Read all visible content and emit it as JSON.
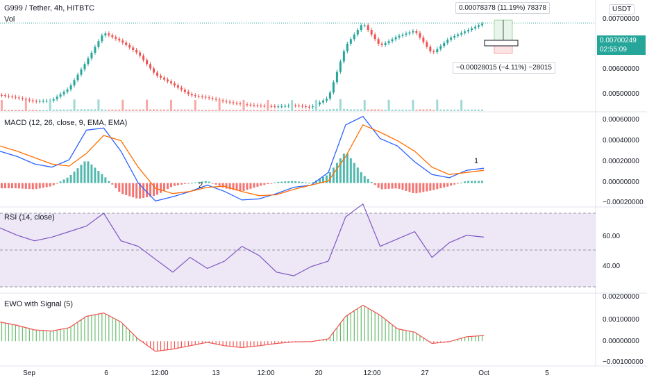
{
  "header": {
    "title": "G999 / Tether, 4h, HITBTC",
    "volume_label": "Vol",
    "currency_button": "USDT"
  },
  "last_price": {
    "value": "0.00700249",
    "countdown": "02:55:09",
    "color": "#26a69a"
  },
  "measure_up": {
    "text": "0.00078378 (11.19%) 78378"
  },
  "measure_down": {
    "text": "−0.00028015 (−4.11%) −28015"
  },
  "price_axis": [
    "0.00700000",
    "0.00600000",
    "0.00500000"
  ],
  "macd_panel": {
    "title": "MACD (12, 26, close, 9, EMA, EMA)",
    "axis": [
      "0.00060000",
      "0.00040000",
      "0.00020000",
      "0.00000000",
      "−0.00020000"
    ],
    "marks": [
      "1",
      "2"
    ]
  },
  "rsi_panel": {
    "title": "RSI (14, close)",
    "axis": [
      "60.00",
      "40.00"
    ]
  },
  "ewo_panel": {
    "title": "EWO with Signal (5)",
    "axis": [
      "0.00200000",
      "0.00100000",
      "0.00000000",
      "−0.00100000"
    ]
  },
  "time_axis": [
    "Sep",
    "6",
    "12:00",
    "13",
    "12:00",
    "20",
    "12:00",
    "27",
    "Oct",
    "5"
  ],
  "colors": {
    "up": "#26a69a",
    "down": "#ef5350",
    "macd": "#2962ff",
    "signal": "#ff6d00",
    "rsi": "#7e57c2",
    "rsi_band": "#ede7f6",
    "ewo_up": "#66bb6a",
    "ewo_down": "#ef5350"
  },
  "chart_data": {
    "type": "line",
    "x": [
      0,
      5,
      10,
      15,
      20,
      25,
      30,
      35,
      40,
      45,
      50,
      55,
      60,
      65,
      70,
      75,
      80,
      85,
      90,
      95,
      100,
      105,
      110,
      115,
      120,
      125,
      130,
      135,
      140
    ],
    "series": [
      {
        "name": "G999 / Tether",
        "values": [
          0.00512,
          0.00505,
          0.00495,
          0.00498,
          0.0053,
          0.006,
          0.00675,
          0.00652,
          0.0062,
          0.00565,
          0.0054,
          0.00512,
          0.00505,
          0.00495,
          0.00488,
          0.00484,
          0.00482,
          0.00485,
          0.0048,
          0.00505,
          0.0064,
          0.007,
          0.0064,
          0.00665,
          0.0068,
          0.0062,
          0.0066,
          0.0068,
          0.007
        ]
      },
      {
        "name": "MACD",
        "values": [
          0.0003,
          0.00025,
          0.00018,
          0.00015,
          0.00022,
          0.0005,
          0.00052,
          0.0003,
          0.0,
          -0.00017,
          -0.00013,
          -8e-05,
          -2e-05,
          -8e-05,
          -0.00016,
          -0.00015,
          -0.0001,
          -4e-05,
          -2e-05,
          0.0001,
          0.00055,
          0.00063,
          0.00042,
          0.00035,
          0.0002,
          8e-05,
          5e-05,
          0.00012,
          0.00014
        ]
      },
      {
        "name": "Signal",
        "values": [
          0.00035,
          0.0003,
          0.00024,
          0.00018,
          0.00016,
          0.00028,
          0.00045,
          0.0004,
          0.00015,
          -5e-05,
          -0.0001,
          -8e-05,
          -4e-05,
          -3e-05,
          -8e-05,
          -0.00012,
          -0.00011,
          -6e-05,
          -2e-05,
          2e-05,
          0.00025,
          0.00055,
          0.00048,
          0.0004,
          0.0003,
          0.00015,
          8e-05,
          0.0001,
          0.00012
        ]
      },
      {
        "name": "RSI",
        "values": [
          62,
          58,
          55,
          57,
          60,
          63,
          70,
          55,
          52,
          45,
          38,
          46,
          40,
          44,
          52,
          47,
          38,
          36,
          41,
          44,
          68,
          75,
          52,
          56,
          60,
          46,
          54,
          58,
          57
        ]
      },
      {
        "name": "EWO",
        "values": [
          0.00085,
          0.0007,
          0.0005,
          0.00045,
          0.0006,
          0.0011,
          0.00125,
          0.00085,
          0.0001,
          -0.00045,
          -0.00035,
          -0.0002,
          -5e-05,
          -0.0002,
          -0.00028,
          -0.0002,
          -0.0001,
          -3e-05,
          -2e-05,
          0.0001,
          0.0011,
          0.0016,
          0.00115,
          0.00055,
          0.0004,
          -0.0001,
          -2e-05,
          0.0002,
          0.00025
        ]
      }
    ],
    "price_ylim": [
      0.0047,
      0.0076
    ],
    "macd_ylim": [
      -0.00022,
      0.00066
    ],
    "rsi_ylim": [
      27,
      73
    ],
    "ewo_ylim": [
      -0.0011,
      0.0021
    ],
    "grid": false
  }
}
